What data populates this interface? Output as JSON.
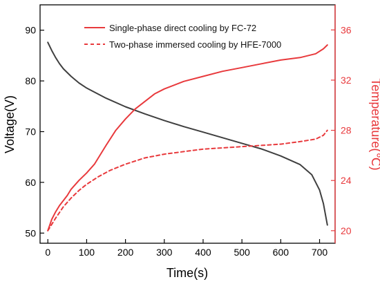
{
  "chart_data": {
    "type": "line",
    "xlabel": "Time(s)",
    "ylabel_left": "Voltage(V)",
    "ylabel_right": "Temperature(℃)",
    "xlim": [
      -20,
      740
    ],
    "ylim_left": [
      48,
      95
    ],
    "ylim_right": [
      19,
      38
    ],
    "x_ticks": [
      0,
      100,
      200,
      300,
      400,
      500,
      600,
      700
    ],
    "y_left_ticks": [
      50,
      60,
      70,
      80,
      90
    ],
    "y_right_ticks": [
      20,
      24,
      28,
      32,
      36
    ],
    "colors": {
      "voltage": "#3f3f3f",
      "temperature": "#e8393c",
      "axis_right": "#e8393c"
    },
    "legend": {
      "placement": "top-center",
      "entries": [
        "Single-phase direct cooling by FC-72",
        "Two-phase immersed cooling by HFE-7000"
      ]
    },
    "series": [
      {
        "axis": "left",
        "style": "solid",
        "points": [
          [
            0,
            87.6
          ],
          [
            10,
            86
          ],
          [
            20,
            84.6
          ],
          [
            30,
            83.4
          ],
          [
            40,
            82.4
          ],
          [
            60,
            80.9
          ],
          [
            80,
            79.6
          ],
          [
            100,
            78.6
          ],
          [
            150,
            76.6
          ],
          [
            200,
            74.9
          ],
          [
            250,
            73.5
          ],
          [
            300,
            72.2
          ],
          [
            350,
            71.0
          ],
          [
            400,
            69.9
          ],
          [
            450,
            68.8
          ],
          [
            500,
            67.7
          ],
          [
            550,
            66.6
          ],
          [
            600,
            65.2
          ],
          [
            650,
            63.5
          ],
          [
            680,
            61.5
          ],
          [
            700,
            58.5
          ],
          [
            710,
            55.8
          ],
          [
            720,
            51.6
          ]
        ]
      },
      {
        "name": "Single-phase direct cooling by FC-72",
        "axis": "right",
        "style": "solid",
        "points": [
          [
            0,
            20
          ],
          [
            10,
            20.9
          ],
          [
            20,
            21.5
          ],
          [
            30,
            22.0
          ],
          [
            40,
            22.4
          ],
          [
            50,
            22.8
          ],
          [
            60,
            23.3
          ],
          [
            80,
            24.0
          ],
          [
            100,
            24.6
          ],
          [
            120,
            25.3
          ],
          [
            150,
            26.8
          ],
          [
            175,
            28.0
          ],
          [
            200,
            28.9
          ],
          [
            225,
            29.7
          ],
          [
            250,
            30.3
          ],
          [
            275,
            30.9
          ],
          [
            300,
            31.3
          ],
          [
            350,
            31.9
          ],
          [
            400,
            32.3
          ],
          [
            450,
            32.7
          ],
          [
            500,
            33.0
          ],
          [
            550,
            33.3
          ],
          [
            600,
            33.6
          ],
          [
            650,
            33.8
          ],
          [
            690,
            34.1
          ],
          [
            710,
            34.5
          ],
          [
            720,
            34.8
          ]
        ]
      },
      {
        "name": "Two-phase immersed cooling by HFE-7000",
        "axis": "right",
        "style": "dashed",
        "points": [
          [
            0,
            20
          ],
          [
            20,
            21.0
          ],
          [
            40,
            21.9
          ],
          [
            60,
            22.6
          ],
          [
            80,
            23.2
          ],
          [
            100,
            23.7
          ],
          [
            130,
            24.3
          ],
          [
            160,
            24.8
          ],
          [
            200,
            25.3
          ],
          [
            250,
            25.8
          ],
          [
            300,
            26.1
          ],
          [
            350,
            26.3
          ],
          [
            400,
            26.5
          ],
          [
            450,
            26.6
          ],
          [
            500,
            26.7
          ],
          [
            550,
            26.8
          ],
          [
            600,
            26.9
          ],
          [
            650,
            27.1
          ],
          [
            690,
            27.3
          ],
          [
            710,
            27.6
          ],
          [
            720,
            28.0
          ]
        ]
      }
    ]
  }
}
